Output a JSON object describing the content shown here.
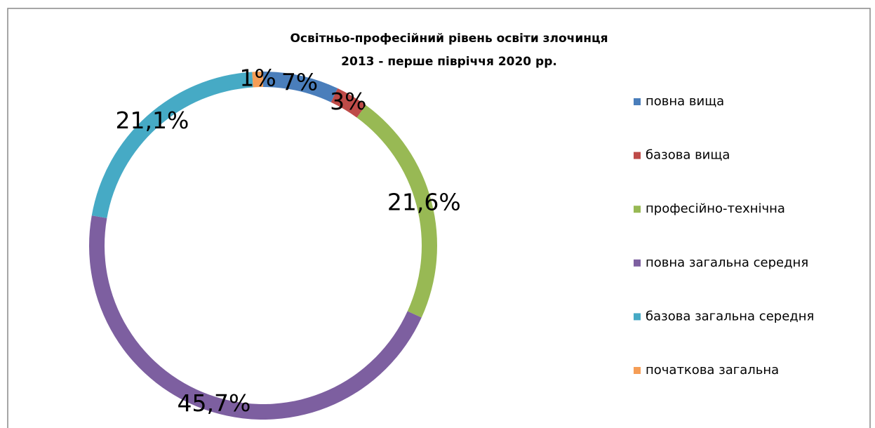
{
  "chart_data": {
    "type": "doughnut",
    "title": "Освітньо-професійний рівень освіти злочинця",
    "subtitle": "2013 - перше півріччя 2020 рр.",
    "categories": [
      "повна вища",
      "базова вища",
      "професійно-технічна",
      "повна загальна середня",
      "базова загальна середня",
      "початкова загальна"
    ],
    "values": [
      7,
      3,
      21.6,
      45.7,
      21.1,
      1
    ],
    "value_labels": [
      "7%",
      "3%",
      "21,6%",
      "45,7%",
      "21,1%",
      "1%"
    ],
    "colors": [
      "#4a7ebb",
      "#be4b48",
      "#98b954",
      "#7d5fa0",
      "#46aac5",
      "#f59d56"
    ],
    "legend": "right"
  }
}
